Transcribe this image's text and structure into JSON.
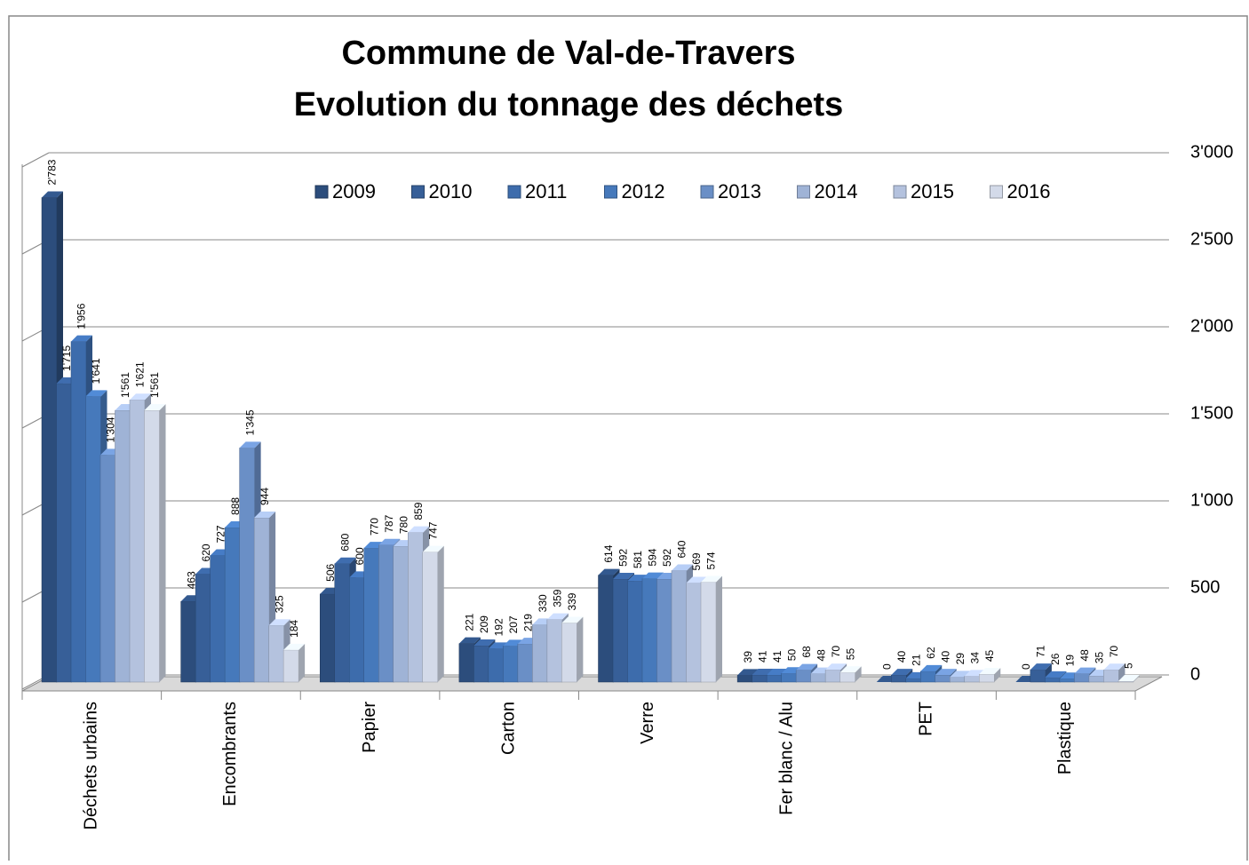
{
  "chart_data": {
    "type": "bar3d",
    "title": [
      "Commune de Val-de-Travers",
      "Evolution du tonnage des déchets"
    ],
    "categories": [
      "Déchets urbains",
      "Encombrants",
      "Papier",
      "Carton",
      "Verre",
      "Fer blanc / Alu",
      "PET",
      "Plastique"
    ],
    "series": [
      {
        "name": "2009",
        "color": "#2c4d7c",
        "values": [
          2783,
          463,
          506,
          221,
          614,
          39,
          0,
          0
        ],
        "value_labels": [
          "2'783",
          "463",
          "506",
          "221",
          "614",
          "39",
          "0",
          "0"
        ]
      },
      {
        "name": "2010",
        "color": "#375f98",
        "values": [
          1715,
          620,
          680,
          209,
          592,
          41,
          40,
          71
        ],
        "value_labels": [
          "1'715",
          "620",
          "680",
          "209",
          "592",
          "41",
          "40",
          "71"
        ]
      },
      {
        "name": "2011",
        "color": "#3d6cac",
        "values": [
          1956,
          727,
          600,
          192,
          581,
          41,
          21,
          26
        ],
        "value_labels": [
          "1'956",
          "727",
          "600",
          "192",
          "581",
          "41",
          "21",
          "26"
        ]
      },
      {
        "name": "2012",
        "color": "#4679bb",
        "values": [
          1641,
          888,
          770,
          207,
          594,
          50,
          62,
          19
        ],
        "value_labels": [
          "1'641",
          "888",
          "770",
          "207",
          "594",
          "50",
          "62",
          "19"
        ]
      },
      {
        "name": "2013",
        "color": "#6a8fc6",
        "values": [
          1304,
          1345,
          787,
          219,
          592,
          68,
          40,
          48
        ],
        "value_labels": [
          "1'304",
          "1'345",
          "787",
          "219",
          "592",
          "68",
          "40",
          "48"
        ]
      },
      {
        "name": "2014",
        "color": "#9fb3d6",
        "values": [
          1561,
          944,
          780,
          330,
          640,
          48,
          29,
          35
        ],
        "value_labels": [
          "1'561",
          "944",
          "780",
          "330",
          "640",
          "48",
          "29",
          "35"
        ]
      },
      {
        "name": "2015",
        "color": "#b4c2de",
        "values": [
          1621,
          325,
          859,
          359,
          569,
          70,
          34,
          70
        ],
        "value_labels": [
          "1'621",
          "325",
          "859",
          "359",
          "569",
          "70",
          "34",
          "70"
        ]
      },
      {
        "name": "2016",
        "color": "#d3dae9",
        "values": [
          1561,
          184,
          747,
          339,
          574,
          55,
          45,
          5
        ],
        "value_labels": [
          "1'561",
          "184",
          "747",
          "339",
          "574",
          "55",
          "45",
          "5"
        ]
      }
    ],
    "ylim": [
      0,
      3000
    ],
    "yticks": [
      0,
      500,
      {
        "value": 1000,
        "label": "1'000"
      },
      {
        "value": 1500,
        "label": "1'500"
      },
      {
        "value": 2000,
        "label": "2'000"
      },
      {
        "value": 2500,
        "label": "2'500"
      },
      {
        "value": 3000,
        "label": "3'000"
      }
    ],
    "grid": true,
    "legend": "top"
  }
}
